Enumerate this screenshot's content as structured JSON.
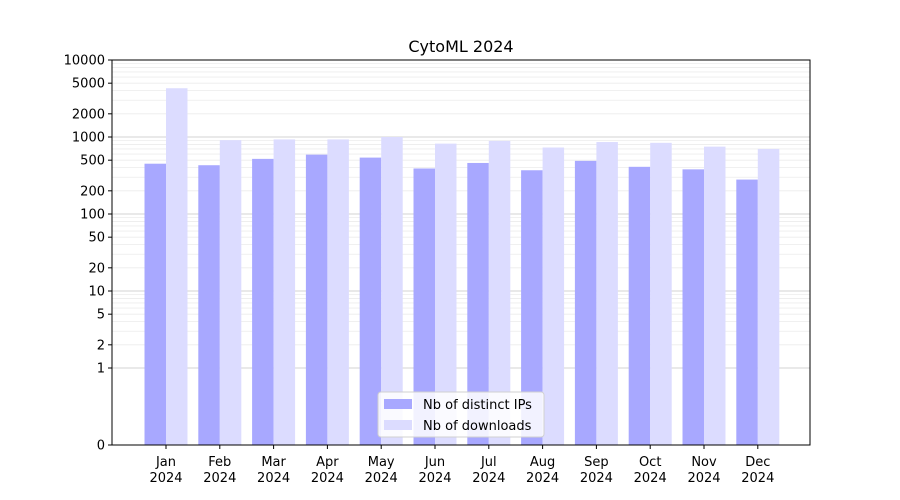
{
  "chart_data": {
    "type": "bar",
    "title": "CytoML 2024",
    "xlabel": "",
    "ylabel": "",
    "yscale": "symlog",
    "ylim": [
      0,
      10000
    ],
    "y_ticks": [
      0,
      1,
      2,
      5,
      10,
      20,
      50,
      100,
      200,
      500,
      1000,
      2000,
      5000,
      10000
    ],
    "grid": true,
    "legend_position": "bottom-center",
    "categories": [
      {
        "month": "Jan",
        "year": "2024"
      },
      {
        "month": "Feb",
        "year": "2024"
      },
      {
        "month": "Mar",
        "year": "2024"
      },
      {
        "month": "Apr",
        "year": "2024"
      },
      {
        "month": "May",
        "year": "2024"
      },
      {
        "month": "Jun",
        "year": "2024"
      },
      {
        "month": "Jul",
        "year": "2024"
      },
      {
        "month": "Aug",
        "year": "2024"
      },
      {
        "month": "Sep",
        "year": "2024"
      },
      {
        "month": "Oct",
        "year": "2024"
      },
      {
        "month": "Nov",
        "year": "2024"
      },
      {
        "month": "Dec",
        "year": "2024"
      }
    ],
    "series": [
      {
        "name": "Nb of distinct IPs",
        "color": "#a8a8ff",
        "values": [
          450,
          430,
          520,
          590,
          540,
          390,
          460,
          370,
          490,
          410,
          380,
          280
        ]
      },
      {
        "name": "Nb of downloads",
        "color": "#dcdcff",
        "values": [
          4300,
          910,
          930,
          930,
          1000,
          820,
          890,
          730,
          860,
          840,
          750,
          700
        ]
      }
    ]
  }
}
